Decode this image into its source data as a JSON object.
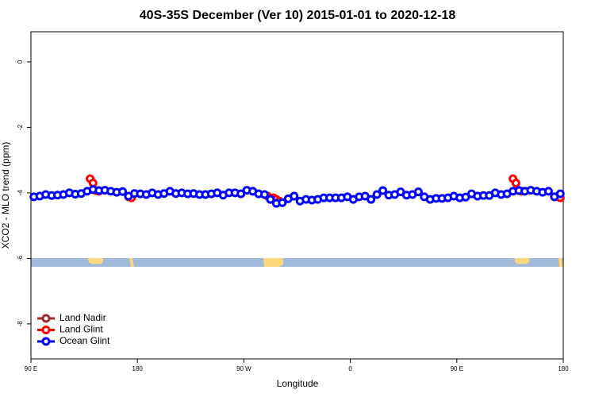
{
  "chart_data": {
    "type": "line",
    "title": "40S-35S December (Ver 10)   2015-01-01 to 2020-12-18",
    "xlabel": "Longitude",
    "ylabel": "XCO2 - MLO trend (ppm)",
    "xlim": [
      90,
      540
    ],
    "xticks": [
      {
        "value": 90,
        "label": "90 E"
      },
      {
        "value": 180,
        "label": "180"
      },
      {
        "value": 270,
        "label": "90 W"
      },
      {
        "value": 360,
        "label": "0"
      },
      {
        "value": 450,
        "label": "90 E"
      },
      {
        "value": 540,
        "label": "180"
      }
    ],
    "ylim": [
      -9.07,
      0.92
    ],
    "yticks": [
      0,
      -2,
      -4,
      -6,
      -8
    ],
    "grid": false,
    "legend": "bottomleft",
    "series": [
      {
        "name": "Land Nadir",
        "color": "#a52a2a",
        "x": [],
        "values": []
      },
      {
        "name": "Land Glint",
        "color": "#ff0000",
        "x": [
          140,
          142.5,
          145,
          147.5,
          160,
          172.5,
          175,
          230,
          290,
          292.5,
          295,
          297.5,
          300,
          400,
          497.5,
          500,
          502.5,
          505,
          520,
          535,
          537.5
        ],
        "values": [
          -3.57,
          -3.7,
          -3.93,
          -3.95,
          null,
          -4.12,
          -4.15,
          null,
          -4.1,
          -4.2,
          -4.15,
          -4.2,
          -4.25,
          null,
          -3.57,
          -3.7,
          -3.93,
          -3.95,
          null,
          -4.12,
          -4.15
        ]
      },
      {
        "name": "Ocean Glint",
        "color": "#0000ff",
        "x": [
          92.5,
          97.5,
          102.5,
          107.5,
          112.5,
          117.5,
          122.5,
          127.5,
          132.5,
          137.5,
          142.5,
          147.5,
          152.5,
          157.5,
          162.5,
          167.5,
          172.5,
          177.5,
          182.5,
          187.5,
          192.5,
          197.5,
          202.5,
          207.5,
          212.5,
          217.5,
          222.5,
          227.5,
          232.5,
          237.5,
          242.5,
          247.5,
          252.5,
          257.5,
          262.5,
          267.5,
          272.5,
          277.5,
          282.5,
          287.5,
          292.5,
          297.5,
          302.5,
          307.5,
          312.5,
          317.5,
          322.5,
          327.5,
          332.5,
          337.5,
          342.5,
          347.5,
          352.5,
          357.5,
          362.5,
          367.5,
          372.5,
          377.5,
          382.5,
          387.5,
          392.5,
          397.5,
          402.5,
          407.5,
          412.5,
          417.5,
          422.5,
          427.5,
          432.5,
          437.5,
          442.5,
          447.5,
          452.5,
          457.5,
          462.5,
          467.5,
          472.5,
          477.5,
          482.5,
          487.5,
          492.5,
          497.5,
          502.5,
          507.5,
          512.5,
          517.5,
          522.5,
          527.5,
          532.5,
          537.5
        ],
        "values": [
          -4.12,
          -4.1,
          -4.05,
          -4.08,
          -4.07,
          -4.05,
          -4.0,
          -4.04,
          -4.02,
          -3.95,
          -3.9,
          -3.93,
          -3.92,
          -3.95,
          -3.98,
          -3.96,
          -4.1,
          -4.02,
          -4.03,
          -4.05,
          -4.0,
          -4.05,
          -4.02,
          -3.95,
          -4.02,
          -4.0,
          -4.03,
          -4.02,
          -4.05,
          -4.05,
          -4.03,
          -4.0,
          -4.07,
          -4.0,
          -4.0,
          -4.03,
          -3.92,
          -3.95,
          -4.03,
          -4.05,
          -4.2,
          -4.32,
          -4.3,
          -4.18,
          -4.1,
          -4.25,
          -4.2,
          -4.22,
          -4.2,
          -4.15,
          -4.15,
          -4.15,
          -4.15,
          -4.12,
          -4.2,
          -4.12,
          -4.1,
          -4.2,
          -4.05,
          -3.93,
          -4.07,
          -4.05,
          -3.97,
          -4.07,
          -4.05,
          -3.97,
          -4.12,
          -4.2,
          -4.17,
          -4.17,
          -4.15,
          -4.1,
          -4.15,
          -4.13,
          -4.03,
          -4.1,
          -4.08,
          -4.08,
          -4.0,
          -4.05,
          -4.03,
          -3.95,
          -3.93,
          -3.95,
          -3.92,
          -3.95,
          -3.98,
          -3.95,
          -4.12,
          -4.03
        ]
      }
    ]
  }
}
